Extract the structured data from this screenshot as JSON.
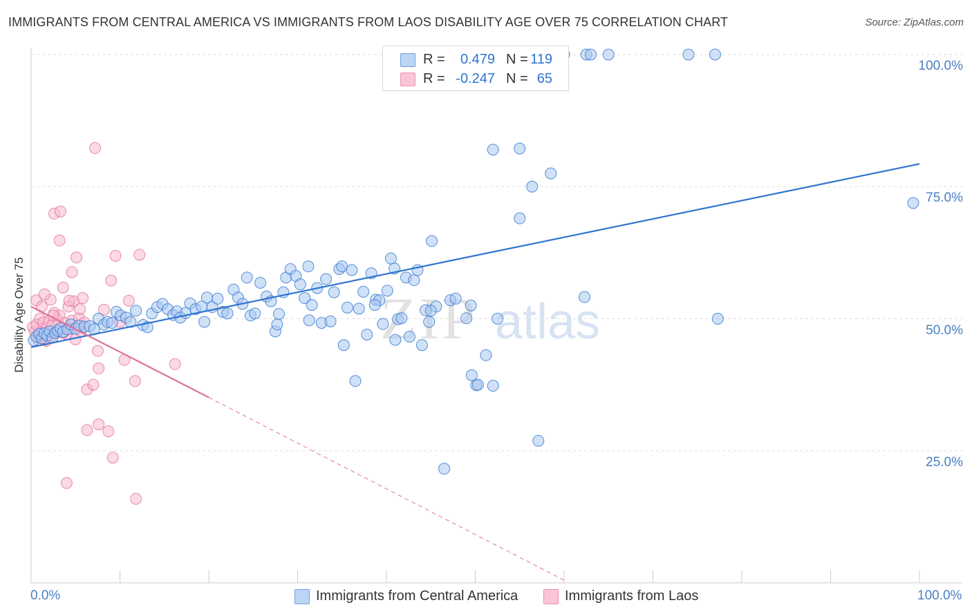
{
  "title": "IMMIGRANTS FROM CENTRAL AMERICA VS IMMIGRANTS FROM LAOS DISABILITY AGE OVER 75 CORRELATION CHART",
  "source": "Source: ZipAtlas.com",
  "watermark": {
    "zip": "ZIP",
    "atlas": "atlas"
  },
  "colors": {
    "blue": "#2e74d0",
    "blue_fill": "#a9c8f0",
    "pink": "#e0709a",
    "pink_fill": "#f7b9cf",
    "tick_text": "#4a7ec4",
    "grid": "#dddddd"
  },
  "legend": {
    "series1": {
      "r_label": "R =",
      "r_value": "0.479",
      "n_label": "N =",
      "n_value": "119"
    },
    "series2": {
      "r_label": "R =",
      "r_value": "-0.247",
      "n_label": "N =",
      "n_value": "65"
    }
  },
  "chart_data": {
    "type": "scatter",
    "title": "IMMIGRANTS FROM CENTRAL AMERICA VS IMMIGRANTS FROM LAOS DISABILITY AGE OVER 75 CORRELATION CHART",
    "xlabel": "",
    "ylabel": "Disability Age Over 75",
    "xlim": [
      0,
      100
    ],
    "ylim": [
      0,
      100
    ],
    "x_tick_labels": [
      "0.0%",
      "100.0%"
    ],
    "y_tick_labels": [
      "25.0%",
      "50.0%",
      "75.0%",
      "100.0%"
    ],
    "y_ticks": [
      25,
      50,
      75,
      100
    ],
    "grid": "horizontal dashed",
    "legend_position": "bottom-center",
    "series": [
      {
        "name": "Immigrants from Central America",
        "color": "#2e74d0",
        "r": 0.479,
        "n": 119,
        "trend": {
          "x": [
            0,
            100
          ],
          "y": [
            44.6,
            79.3
          ],
          "style": "solid"
        },
        "points": [
          [
            0.3,
            45.9
          ],
          [
            0.6,
            46.6
          ],
          [
            0.9,
            47.1
          ],
          [
            1.2,
            46.3
          ],
          [
            1.5,
            47.2
          ],
          [
            1.8,
            46.8
          ],
          [
            2.1,
            47.6
          ],
          [
            2.4,
            46.4
          ],
          [
            2.7,
            47.3
          ],
          [
            3.0,
            47.7
          ],
          [
            3.3,
            48.2
          ],
          [
            3.6,
            47.5
          ],
          [
            4.1,
            48.0
          ],
          [
            4.5,
            48.9
          ],
          [
            5.0,
            48.1
          ],
          [
            5.4,
            48.7
          ],
          [
            6.0,
            48.5
          ],
          [
            6.6,
            48.6
          ],
          [
            7.1,
            48.0
          ],
          [
            7.6,
            50.0
          ],
          [
            8.2,
            48.9
          ],
          [
            8.6,
            49.4
          ],
          [
            9.1,
            49.2
          ],
          [
            9.6,
            51.3
          ],
          [
            10.1,
            50.6
          ],
          [
            10.7,
            50.2
          ],
          [
            11.2,
            49.4
          ],
          [
            11.8,
            51.5
          ],
          [
            12.6,
            48.8
          ],
          [
            13.1,
            48.4
          ],
          [
            13.6,
            51.0
          ],
          [
            14.2,
            52.2
          ],
          [
            14.8,
            52.8
          ],
          [
            15.4,
            51.8
          ],
          [
            16.0,
            50.7
          ],
          [
            16.4,
            51.4
          ],
          [
            16.8,
            50.2
          ],
          [
            17.4,
            51.1
          ],
          [
            17.9,
            52.9
          ],
          [
            18.5,
            51.8
          ],
          [
            19.2,
            52.3
          ],
          [
            19.5,
            49.4
          ],
          [
            19.8,
            54.0
          ],
          [
            20.4,
            52.2
          ],
          [
            21.0,
            53.8
          ],
          [
            21.6,
            51.3
          ],
          [
            22.1,
            51.0
          ],
          [
            22.8,
            55.5
          ],
          [
            23.3,
            54.0
          ],
          [
            23.8,
            52.8
          ],
          [
            24.3,
            57.8
          ],
          [
            24.7,
            50.6
          ],
          [
            25.2,
            51.0
          ],
          [
            25.8,
            56.8
          ],
          [
            26.5,
            54.2
          ],
          [
            27.0,
            53.3
          ],
          [
            27.5,
            47.6
          ],
          [
            27.9,
            50.9
          ],
          [
            28.4,
            55.0
          ],
          [
            28.7,
            57.8
          ],
          [
            29.2,
            59.4
          ],
          [
            29.8,
            58.1
          ],
          [
            30.3,
            56.5
          ],
          [
            30.8,
            53.9
          ],
          [
            31.2,
            59.9
          ],
          [
            31.6,
            52.6
          ],
          [
            32.2,
            55.8
          ],
          [
            32.7,
            49.2
          ],
          [
            33.2,
            57.5
          ],
          [
            33.7,
            49.5
          ],
          [
            34.1,
            55.0
          ],
          [
            34.7,
            59.4
          ],
          [
            35.0,
            59.9
          ],
          [
            35.6,
            52.1
          ],
          [
            36.1,
            59.2
          ],
          [
            36.5,
            38.2
          ],
          [
            36.9,
            51.9
          ],
          [
            37.4,
            55.1
          ],
          [
            37.8,
            47.0
          ],
          [
            38.3,
            58.6
          ],
          [
            38.8,
            53.6
          ],
          [
            39.2,
            53.5
          ],
          [
            39.6,
            49.0
          ],
          [
            40.1,
            55.3
          ],
          [
            40.5,
            61.4
          ],
          [
            40.9,
            59.5
          ],
          [
            41.3,
            49.9
          ],
          [
            41.7,
            50.1
          ],
          [
            42.2,
            57.8
          ],
          [
            42.6,
            46.6
          ],
          [
            43.1,
            57.3
          ],
          [
            43.5,
            59.2
          ],
          [
            44.0,
            45.0
          ],
          [
            44.4,
            51.6
          ],
          [
            44.8,
            49.4
          ],
          [
            45.1,
            64.7
          ],
          [
            45.6,
            52.3
          ],
          [
            46.5,
            21.6
          ],
          [
            47.2,
            53.5
          ],
          [
            47.8,
            53.8
          ],
          [
            49.0,
            50.1
          ],
          [
            49.6,
            39.3
          ],
          [
            50.1,
            37.4
          ],
          [
            50.3,
            37.5
          ],
          [
            51.2,
            43.1
          ],
          [
            52.0,
            37.3
          ],
          [
            55.0,
            69.0
          ],
          [
            56.4,
            75.0
          ],
          [
            57.1,
            26.9
          ],
          [
            58.5,
            77.5
          ],
          [
            60.0,
            100.0
          ],
          [
            62.5,
            100.0
          ],
          [
            63.0,
            100.0
          ],
          [
            65.0,
            100.0
          ],
          [
            55.0,
            82.2
          ],
          [
            52.0,
            82.0
          ],
          [
            74.0,
            100.0
          ],
          [
            77.0,
            100.0
          ],
          [
            77.3,
            50.0
          ],
          [
            62.3,
            54.1
          ],
          [
            99.3,
            71.9
          ],
          [
            52.5,
            50.0
          ],
          [
            49.5,
            52.5
          ],
          [
            45.0,
            51.5
          ],
          [
            41.0,
            46.0
          ],
          [
            38.7,
            52.6
          ],
          [
            35.2,
            45.0
          ],
          [
            31.3,
            49.7
          ],
          [
            27.7,
            48.9
          ]
        ]
      },
      {
        "name": "Immigrants from Laos",
        "color": "#e0709a",
        "r": -0.247,
        "n": 65,
        "trend": {
          "x": [
            0,
            20,
            60
          ],
          "y": [
            52.3,
            35.1,
            0.5
          ],
          "style": "solid-then-dashed"
        },
        "points": [
          [
            0.2,
            48.4
          ],
          [
            0.4,
            47.5
          ],
          [
            0.6,
            48.9
          ],
          [
            0.8,
            46.4
          ],
          [
            1.0,
            50.0
          ],
          [
            1.2,
            47.5
          ],
          [
            1.4,
            49.3
          ],
          [
            1.6,
            46.0
          ],
          [
            1.8,
            48.3
          ],
          [
            2.0,
            49.5
          ],
          [
            2.2,
            53.6
          ],
          [
            2.4,
            48.8
          ],
          [
            2.6,
            51.1
          ],
          [
            2.8,
            47.3
          ],
          [
            3.0,
            49.7
          ],
          [
            3.2,
            50.6
          ],
          [
            3.4,
            47.9
          ],
          [
            3.6,
            55.9
          ],
          [
            3.8,
            49.2
          ],
          [
            4.0,
            47.1
          ],
          [
            4.2,
            52.3
          ],
          [
            4.4,
            48.1
          ],
          [
            4.6,
            49.6
          ],
          [
            4.8,
            53.3
          ],
          [
            5.0,
            46.1
          ],
          [
            5.2,
            48.6
          ],
          [
            5.4,
            50.1
          ],
          [
            5.6,
            47.6
          ],
          [
            5.8,
            53.9
          ],
          [
            6.0,
            49.3
          ],
          [
            0.6,
            53.5
          ],
          [
            1.2,
            52.3
          ],
          [
            1.5,
            54.6
          ],
          [
            2.6,
            69.9
          ],
          [
            3.3,
            70.3
          ],
          [
            3.2,
            64.8
          ],
          [
            4.6,
            58.8
          ],
          [
            5.1,
            61.6
          ],
          [
            7.2,
            82.3
          ],
          [
            7.5,
            43.9
          ],
          [
            6.3,
            36.6
          ],
          [
            7.6,
            40.6
          ],
          [
            8.2,
            51.7
          ],
          [
            9.0,
            57.2
          ],
          [
            9.5,
            61.9
          ],
          [
            10.0,
            49.4
          ],
          [
            10.5,
            42.2
          ],
          [
            11.0,
            53.4
          ],
          [
            12.2,
            62.1
          ],
          [
            11.7,
            38.2
          ],
          [
            7.0,
            37.5
          ],
          [
            6.3,
            28.9
          ],
          [
            7.6,
            30.0
          ],
          [
            8.7,
            28.7
          ],
          [
            9.2,
            23.7
          ],
          [
            4.0,
            18.9
          ],
          [
            11.8,
            15.9
          ],
          [
            16.2,
            41.4
          ],
          [
            2.1,
            46.4
          ],
          [
            0.9,
            45.9
          ],
          [
            1.7,
            45.8
          ],
          [
            3.6,
            47.3
          ],
          [
            5.5,
            51.8
          ],
          [
            2.5,
            50.6
          ],
          [
            4.3,
            53.4
          ]
        ]
      }
    ]
  }
}
